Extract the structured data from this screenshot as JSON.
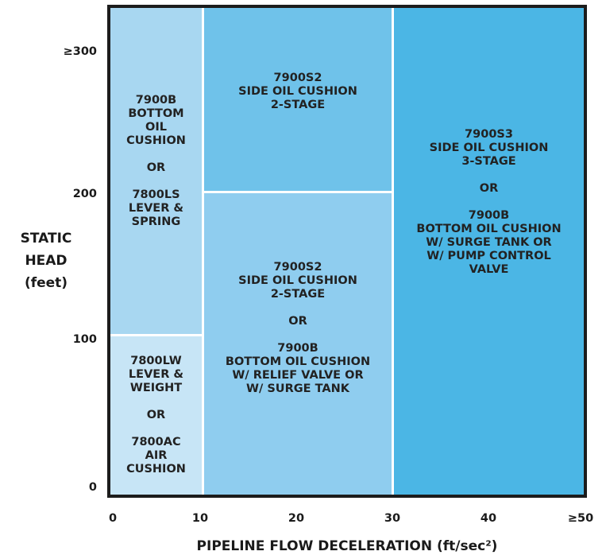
{
  "y_axis": {
    "label_lines": [
      "STATIC",
      "HEAD",
      "(feet)"
    ],
    "ticks": [
      "≥300",
      "200",
      "100",
      "0"
    ]
  },
  "x_axis": {
    "label": "PIPELINE FLOW DECELERATION (ft/sec²)",
    "ticks": [
      "0",
      "10",
      "20",
      "30",
      "40",
      "≥50"
    ]
  },
  "regions": [
    {
      "id": "r1",
      "color": "#a8d7f1",
      "lines": [
        "7900B",
        "BOTTOM",
        "OIL",
        "CUSHION",
        "",
        "OR",
        "",
        "7800LS",
        "LEVER &",
        "SPRING"
      ]
    },
    {
      "id": "r2",
      "color": "#c7e5f6",
      "lines": [
        "7800LW",
        "LEVER &",
        "WEIGHT",
        "",
        "OR",
        "",
        "7800AC",
        "AIR",
        "CUSHION"
      ]
    },
    {
      "id": "r3",
      "color": "#6fc2ea",
      "lines": [
        "7900S2",
        "SIDE OIL CUSHION",
        "2-STAGE"
      ]
    },
    {
      "id": "r4",
      "color": "#8fcdef",
      "lines": [
        "7900S2",
        "SIDE OIL CUSHION",
        "2-STAGE",
        "",
        "OR",
        "",
        "7900B",
        "BOTTOM OIL CUSHION",
        "W/ RELIEF VALVE OR",
        "W/ SURGE TANK"
      ]
    },
    {
      "id": "r5",
      "color": "#4bb6e5",
      "lines": [
        "7900S3",
        "SIDE OIL CUSHION",
        "3-STAGE",
        "",
        "OR",
        "",
        "7900B",
        "BOTTOM OIL CUSHION",
        "W/ SURGE TANK OR",
        "W/ PUMP CONTROL",
        "VALVE"
      ]
    }
  ]
}
